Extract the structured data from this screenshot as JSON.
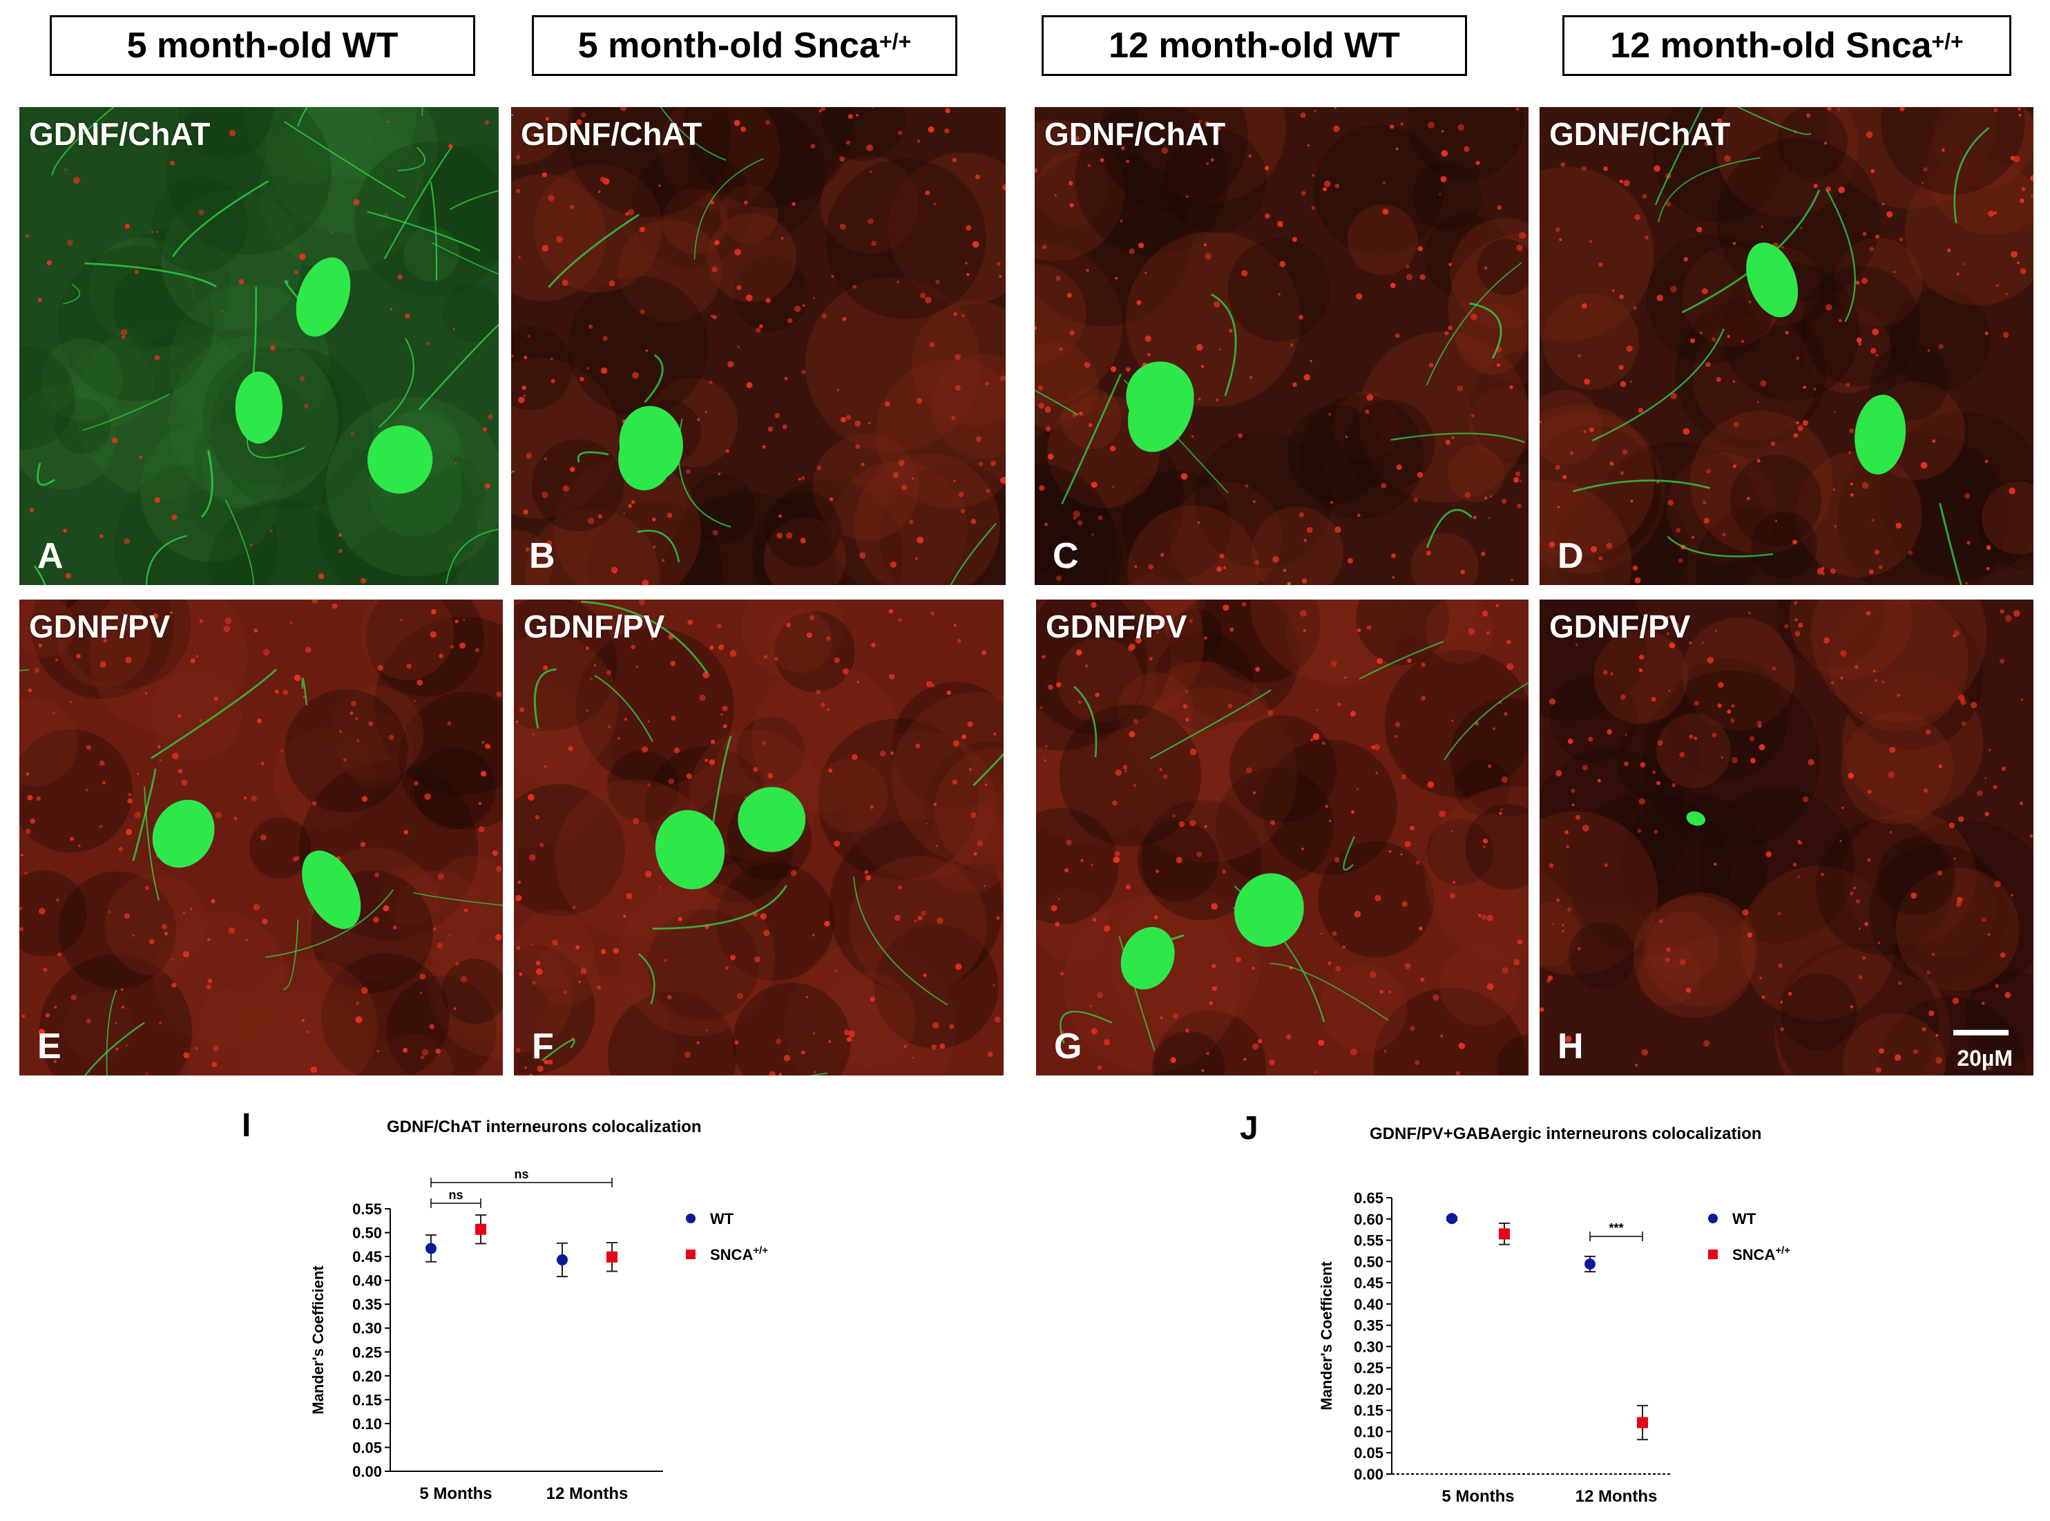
{
  "columns": [
    {
      "label": "5 month-old WT",
      "sup": ""
    },
    {
      "label": "5 month-old Snca",
      "sup": "+/+"
    },
    {
      "label": "12 month-old WT",
      "sup": ""
    },
    {
      "label": "12 month-old Snca",
      "sup": "+/+"
    }
  ],
  "panels": [
    {
      "title": "GDNF/ChAT",
      "letter": "A"
    },
    {
      "title": "GDNF/ChAT",
      "letter": "B"
    },
    {
      "title": "GDNF/ChAT",
      "letter": "C"
    },
    {
      "title": "GDNF/ChAT",
      "letter": "D"
    },
    {
      "title": "GDNF/PV",
      "letter": "E"
    },
    {
      "title": "GDNF/PV",
      "letter": "F"
    },
    {
      "title": "GDNF/PV",
      "letter": "G"
    },
    {
      "title": "GDNF/PV",
      "letter": "H"
    }
  ],
  "scale_bar_label": "20µM",
  "colors": {
    "green": "#2ee84a",
    "red": "#e8321e",
    "wt_marker": "#0a1a9c",
    "snca_marker": "#e8001a"
  },
  "chart_data": [
    {
      "type": "scatter",
      "panel_letter": "I",
      "title": "GDNF/ChAT interneurons colocalization",
      "ylabel": "Mander's Coefficient",
      "categories": [
        "5 Months",
        "12 Months"
      ],
      "ylim": [
        0,
        0.55
      ],
      "yticks": [
        "0.00",
        "0.05",
        "0.10",
        "0.15",
        "0.20",
        "0.25",
        "0.30",
        "0.35",
        "0.40",
        "0.45",
        "0.50",
        "0.55"
      ],
      "series": [
        {
          "name": "WT",
          "sup": "",
          "marker": "circle",
          "values": [
            0.467,
            0.443
          ],
          "errors": [
            0.028,
            0.035
          ]
        },
        {
          "name": "SNCA",
          "sup": "+/+",
          "marker": "square",
          "values": [
            0.507,
            0.449
          ],
          "errors": [
            0.03,
            0.03
          ]
        }
      ],
      "significance": [
        {
          "label": "ns",
          "from_cat": 0,
          "from_series": 0,
          "to_cat": 0,
          "to_series": 1,
          "level": 0
        },
        {
          "label": "ns",
          "from_cat": 0,
          "from_series": 0,
          "to_cat": 1,
          "to_series": 1,
          "level": 1
        }
      ],
      "legend_position": "right"
    },
    {
      "type": "scatter",
      "panel_letter": "J",
      "title": "GDNF/PV+GABAergic interneurons colocalization",
      "ylabel": "Mander's Coefficient",
      "categories": [
        "5 Months",
        "12 Months"
      ],
      "ylim": [
        0,
        0.65
      ],
      "yticks": [
        "0.00",
        "0.05",
        "0.10",
        "0.15",
        "0.20",
        "0.25",
        "0.30",
        "0.35",
        "0.40",
        "0.45",
        "0.50",
        "0.55",
        "0.60",
        "0.65"
      ],
      "series": [
        {
          "name": "WT",
          "sup": "",
          "marker": "circle",
          "values": [
            0.601,
            0.494
          ],
          "errors": [
            0.004,
            0.018
          ]
        },
        {
          "name": "SNCA",
          "sup": "+/+",
          "marker": "square",
          "values": [
            0.565,
            0.121
          ],
          "errors": [
            0.025,
            0.04
          ]
        }
      ],
      "significance": [
        {
          "label": "***",
          "from_cat": 1,
          "from_series": 0,
          "to_cat": 1,
          "to_series": 1,
          "level": 0
        }
      ],
      "legend_position": "right"
    }
  ]
}
